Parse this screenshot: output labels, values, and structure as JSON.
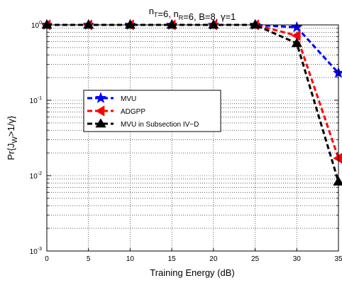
{
  "chart_data": {
    "type": "line",
    "title": "n_T=6, n_R=6, B=8, γ=1",
    "xlabel": "Training Energy (dB)",
    "ylabel": "Pr{J_W>1/γ}",
    "x": [
      0,
      5,
      10,
      15,
      20,
      25,
      30,
      35
    ],
    "xlim": [
      0,
      35
    ],
    "ylim": [
      0.001,
      1
    ],
    "yscale": "log",
    "xticks": [
      "0",
      "5",
      "10",
      "15",
      "20",
      "25",
      "30",
      "35"
    ],
    "ytick_exponents": [
      "0",
      "-1",
      "-2",
      "-3"
    ],
    "grid": true,
    "legend_position": "center-left",
    "series": [
      {
        "name": "MVU",
        "color": "#0000ff",
        "marker": "star",
        "values": [
          1,
          1,
          1,
          1,
          1,
          1,
          0.93,
          0.23
        ]
      },
      {
        "name": "ADGPP",
        "color": "#ff0000",
        "marker": "triangle-left",
        "values": [
          1,
          1,
          1,
          1,
          1,
          1,
          0.72,
          0.017
        ]
      },
      {
        "name": "MVU in Subsection IV−D",
        "color": "#000000",
        "marker": "triangle-up",
        "values": [
          1,
          1,
          1,
          1,
          1,
          1,
          0.57,
          0.0083
        ]
      }
    ]
  }
}
